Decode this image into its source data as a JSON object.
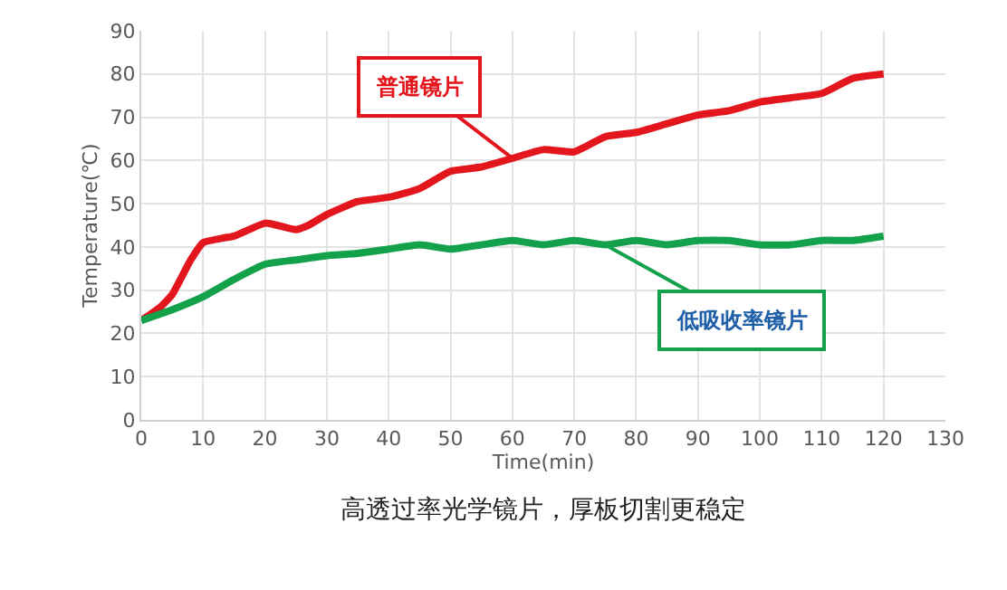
{
  "chart_data": {
    "type": "line",
    "xlabel": "Time(min)",
    "ylabel": "Temperature(℃)",
    "xlim": [
      0,
      130
    ],
    "xticks": [
      0,
      10,
      20,
      30,
      40,
      50,
      60,
      70,
      80,
      90,
      100,
      110,
      120,
      130
    ],
    "ylim": [
      0,
      90
    ],
    "yticks": [
      0,
      10,
      20,
      30,
      40,
      50,
      60,
      70,
      80,
      90
    ],
    "grid": true,
    "legend": false,
    "marker": "none",
    "line_style": "solid",
    "series": [
      {
        "name": "普通镜片",
        "color": "#e3161d",
        "x": [
          0,
          3,
          5,
          8,
          10,
          13,
          15,
          20,
          22,
          25,
          27,
          30,
          35,
          40,
          45,
          50,
          55,
          60,
          65,
          70,
          75,
          80,
          85,
          90,
          95,
          100,
          105,
          110,
          115,
          120
        ],
        "values": [
          23,
          26,
          29,
          37,
          41,
          42,
          42.5,
          45.5,
          45,
          44,
          45,
          47.5,
          50.5,
          51.5,
          53.5,
          57.5,
          58.5,
          60.5,
          62.5,
          62,
          65.5,
          66.5,
          68.5,
          70.5,
          71.5,
          73.5,
          74.5,
          75.5,
          79,
          80
        ]
      },
      {
        "name": "低吸收率镜片",
        "color": "#13a14b",
        "x": [
          0,
          5,
          10,
          15,
          20,
          25,
          30,
          35,
          40,
          45,
          50,
          55,
          60,
          65,
          70,
          75,
          80,
          85,
          90,
          95,
          100,
          105,
          110,
          115,
          120
        ],
        "values": [
          23,
          25.5,
          28.5,
          32.5,
          36,
          37,
          38,
          38.5,
          39.5,
          40.5,
          39.5,
          40.5,
          41.5,
          40.5,
          41.5,
          40.5,
          41.5,
          40.5,
          41.5,
          41.5,
          40.5,
          40.5,
          41.5,
          41.5,
          42.5
        ]
      }
    ],
    "annotations": [
      "高透过率光学镜片，厚板切割更稳定"
    ]
  }
}
